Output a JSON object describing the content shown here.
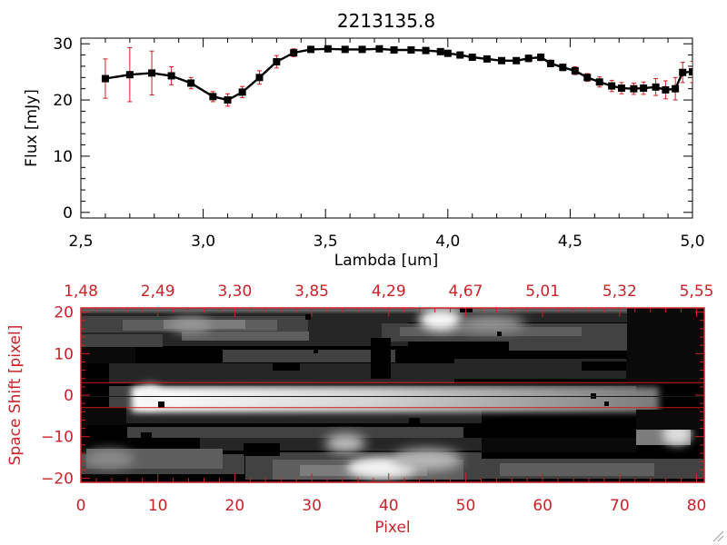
{
  "chart_data": [
    {
      "type": "line",
      "title": "2213135.8",
      "xlabel": "Lambda [um]",
      "ylabel": "Flux [mJy]",
      "xlim": [
        2.5,
        5.0
      ],
      "ylim": [
        -1,
        31
      ],
      "x_ticks": [
        "2.5",
        "3.0",
        "3.5",
        "4.0",
        "4.5",
        "5.0"
      ],
      "y_ticks": [
        "0",
        "10",
        "20",
        "30"
      ],
      "grid": false,
      "colors": {
        "line": "#000000",
        "marker": "#000000",
        "errorbar": "#cc2020"
      },
      "series": [
        {
          "x": [
            2.6,
            2.7,
            2.79,
            2.87,
            2.95,
            3.04,
            3.1,
            3.16,
            3.23,
            3.3,
            3.37,
            3.44,
            3.51,
            3.58,
            3.65,
            3.72,
            3.78,
            3.85,
            3.91,
            3.97,
            4.0,
            4.05,
            4.1,
            4.16,
            4.22,
            4.28,
            4.33,
            4.38,
            4.42,
            4.47,
            4.52,
            4.57,
            4.62,
            4.67,
            4.71,
            4.76,
            4.8,
            4.85,
            4.89,
            4.93,
            4.96,
            5.0
          ],
          "y": [
            23.8,
            24.5,
            24.8,
            24.3,
            23.0,
            20.6,
            20.0,
            21.4,
            24.0,
            26.8,
            28.4,
            29.0,
            29.1,
            29.0,
            29.0,
            29.1,
            28.9,
            28.9,
            28.8,
            28.6,
            28.3,
            28.0,
            27.6,
            27.3,
            27.0,
            27.0,
            27.4,
            27.6,
            26.5,
            25.8,
            25.2,
            24.0,
            23.2,
            22.5,
            22.1,
            22.0,
            22.1,
            22.3,
            21.8,
            22.0,
            24.9,
            25.0
          ],
          "err": [
            3.5,
            4.8,
            3.9,
            1.6,
            1.0,
            0.9,
            1.1,
            1.0,
            1.2,
            1.1,
            0.7,
            0.5,
            0.5,
            0.5,
            0.5,
            0.5,
            0.5,
            0.5,
            0.5,
            0.5,
            0.5,
            0.5,
            0.5,
            0.5,
            0.5,
            0.5,
            0.6,
            0.6,
            0.6,
            0.6,
            0.7,
            0.7,
            0.9,
            1.0,
            1.0,
            1.0,
            1.1,
            1.5,
            1.6,
            2.0,
            1.8,
            1.9
          ]
        }
      ]
    },
    {
      "type": "heatmap",
      "xlabel": "Pixel",
      "ylabel": "Space Shift [pixel]",
      "xlim": [
        0,
        81
      ],
      "ylim": [
        -21,
        21
      ],
      "x_ticks": [
        "0",
        "10",
        "20",
        "30",
        "40",
        "50",
        "60",
        "70",
        "80"
      ],
      "y_ticks": [
        "-20",
        "-10",
        "0",
        "10",
        "20"
      ],
      "top_axis_ticks": [
        "1.48",
        "2.49",
        "3.30",
        "3.85",
        "4.29",
        "4.67",
        "5.01",
        "5.32",
        "5.55"
      ],
      "extraction_window": [
        -3,
        3
      ],
      "colors": {
        "axis": "#c8232a",
        "window_lines": "#d01818",
        "colormap": "gray"
      }
    }
  ]
}
